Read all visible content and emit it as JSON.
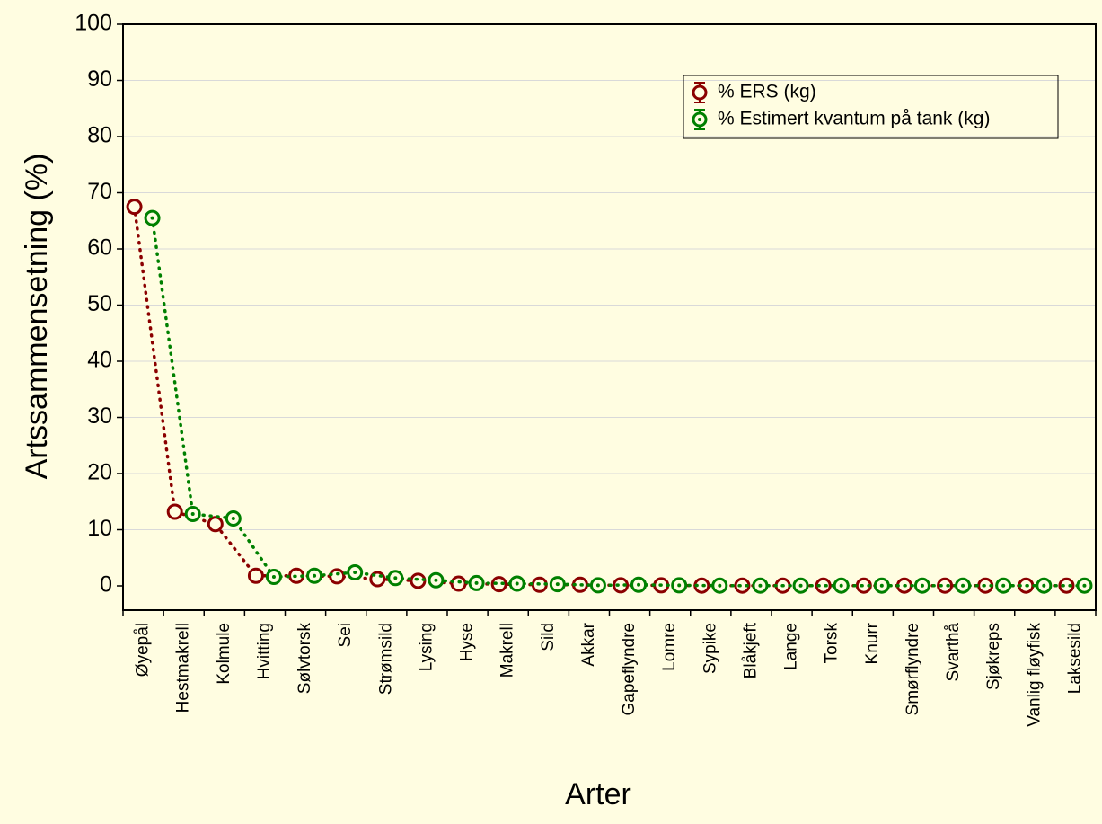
{
  "chart_data": {
    "type": "line",
    "xlabel": "Arter",
    "ylabel": "Artssammensetning (%)",
    "ylim": [
      0,
      100
    ],
    "yticks": [
      "0",
      "10",
      "20",
      "30",
      "40",
      "50",
      "60",
      "70",
      "80",
      "90",
      "100"
    ],
    "grid": true,
    "legend_position": "top-right",
    "categories": [
      "Øyepål",
      "Hestmakrell",
      "Kolmule",
      "Hvitting",
      "Sølvtorsk",
      "Sei",
      "Strømsild",
      "Lysing",
      "Hyse",
      "Makrell",
      "Sild",
      "Akkar",
      "Gapeflyndre",
      "Lomre",
      "Sypike",
      "Blåkjeft",
      "Lange",
      "Torsk",
      "Knurr",
      "Smørflyndre",
      "Svarthå",
      "Sjøkreps",
      "Vanlig fløyfisk",
      "Laksesild"
    ],
    "series": [
      {
        "name": "% ERS (kg)",
        "color": "#8b0000",
        "marker": "circle-open",
        "line": "dotted",
        "values": [
          67.5,
          13.2,
          11.0,
          1.8,
          1.8,
          1.7,
          1.2,
          0.9,
          0.4,
          0.3,
          0.2,
          0.2,
          0.1,
          0.1,
          0.05,
          0.05,
          0.05,
          0.05,
          0.05,
          0.05,
          0.05,
          0.05,
          0.05,
          0.05
        ]
      },
      {
        "name": "% Estimert kvantum på tank (kg)",
        "color": "#008000",
        "marker": "circle-dot",
        "line": "dotted",
        "values": [
          65.5,
          12.8,
          12.0,
          1.6,
          1.8,
          2.4,
          1.4,
          1.0,
          0.5,
          0.4,
          0.3,
          0.1,
          0.2,
          0.1,
          0.05,
          0.05,
          0.05,
          0.05,
          0.05,
          0.05,
          0.05,
          0.05,
          0.05,
          0.05
        ]
      }
    ]
  }
}
